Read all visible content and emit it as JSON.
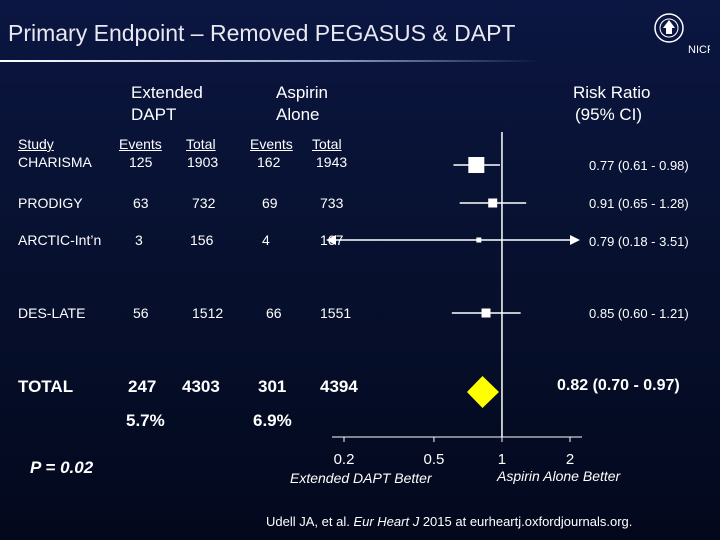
{
  "slide": {
    "title": "Primary Endpoint – Removed PEGASUS & DAPT",
    "logo_text": "NICR",
    "logo_icon": "university-seal-icon",
    "citation_prefix": "Udell JA, et al.",
    "citation_journal": "Eur Heart J",
    "citation_suffix": "2015 at eurheartj.oxfordjournals.org."
  },
  "columns": {
    "group1_line1": "Extended",
    "group1_line2": "DAPT",
    "group2_line1": "Aspirin",
    "group2_line2": "Alone",
    "rr_line1": "Risk Ratio",
    "rr_line2": "(95% CI)",
    "study": "Study",
    "events1": "Events",
    "total1": "Total",
    "events2": "Events",
    "total2": "Total"
  },
  "rows": [
    {
      "study": "CHARISMA",
      "events1": "125",
      "total1": "1903",
      "events2": "162",
      "total2": "1943",
      "rr_text": "0.77 (0.61 - 0.98)"
    },
    {
      "study": "PRODIGY",
      "events1": "63",
      "total1": "732",
      "events2": "69",
      "total2": "733",
      "rr_text": "0.91 (0.65 - 1.28)"
    },
    {
      "study": "ARCTIC-Int’n",
      "events1": "3",
      "total1": "156",
      "events2": "4",
      "total2": "167",
      "rr_text": "0.79 (0.18 - 3.51)"
    },
    {
      "study": "DES-LATE",
      "events1": "56",
      "total1": "1512",
      "events2": "66",
      "total2": "1551",
      "rr_text": "0.85 (0.60 - 1.21)"
    }
  ],
  "total": {
    "label": "TOTAL",
    "events1": "247",
    "total1": "4303",
    "events2": "301",
    "total2": "4394",
    "rate1": "5.7%",
    "rate2": "6.9%",
    "rr_text": "0.82 (0.70 - 0.97)"
  },
  "p_value": "P = 0.02",
  "chart_data": {
    "type": "forest",
    "x_scale": "log",
    "xlim": [
      0.2,
      2
    ],
    "reference_line": 1,
    "x_ticks": [
      {
        "value": 0.2,
        "label": "0.2"
      },
      {
        "value": 0.5,
        "label": "0.5"
      },
      {
        "value": 1,
        "label": "1"
      },
      {
        "value": 2,
        "label": "2"
      }
    ],
    "xlabel_left": "Extended DAPT Better",
    "xlabel_right": "Aspirin Alone Better",
    "marker_color": "#ffffff",
    "pooled_color": "#ffff00",
    "studies": [
      {
        "name": "CHARISMA",
        "rr": 0.77,
        "lo": 0.61,
        "hi": 0.98,
        "weight": "large",
        "arrow_left": false,
        "arrow_right": false
      },
      {
        "name": "PRODIGY",
        "rr": 0.91,
        "lo": 0.65,
        "hi": 1.28,
        "weight": "small",
        "arrow_left": false,
        "arrow_right": false
      },
      {
        "name": "ARCTIC-Int’n",
        "rr": 0.79,
        "lo": 0.18,
        "hi": 3.51,
        "weight": "tiny",
        "arrow_left": true,
        "arrow_right": true
      },
      {
        "name": "DES-LATE",
        "rr": 0.85,
        "lo": 0.6,
        "hi": 1.21,
        "weight": "small",
        "arrow_left": false,
        "arrow_right": false
      }
    ],
    "pooled": {
      "rr": 0.82,
      "lo": 0.7,
      "hi": 0.97
    }
  }
}
